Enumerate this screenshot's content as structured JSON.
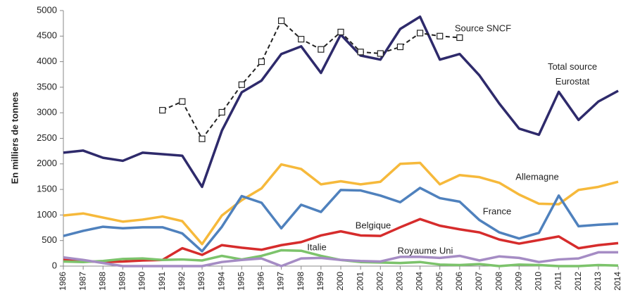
{
  "chart_data": {
    "type": "line",
    "y_label": "En milliers de tonnes",
    "categories": [
      "1986",
      "1987",
      "1988",
      "1989",
      "1990",
      "1991",
      "1992",
      "1993",
      "1994",
      "1995",
      "1996",
      "1997",
      "1998",
      "1999",
      "2000",
      "2001",
      "2002",
      "2003",
      "2004",
      "2005",
      "2006",
      "2007",
      "2008",
      "2009",
      "2010",
      "2011",
      "2012",
      "2013",
      "2014"
    ],
    "ylim": [
      0,
      5000
    ],
    "yticks": [
      0,
      500,
      1000,
      1500,
      2000,
      2500,
      3000,
      3500,
      4000,
      4500,
      5000
    ],
    "series": [
      {
        "name": "Total source Eurostat",
        "color": "#2e2a6b",
        "values": [
          2220,
          2260,
          2120,
          2060,
          2220,
          2190,
          2160,
          1550,
          2650,
          3400,
          3630,
          4150,
          4300,
          3780,
          4530,
          4120,
          4040,
          4640,
          4880,
          4040,
          4150,
          3730,
          3180,
          2690,
          2570,
          3410,
          2860,
          3220,
          3430
        ]
      },
      {
        "name": "Source SNCF",
        "color": "#222222",
        "dashed": true,
        "markers": "square",
        "values": [
          null,
          null,
          null,
          null,
          null,
          3050,
          3220,
          2490,
          3010,
          3550,
          4000,
          4800,
          4440,
          4240,
          4580,
          4190,
          4160,
          4290,
          4560,
          4500,
          4470,
          null,
          null,
          null,
          null,
          null,
          null,
          null,
          null
        ]
      },
      {
        "name": "Allemagne",
        "color": "#f6b93b",
        "values": [
          990,
          1030,
          950,
          870,
          910,
          970,
          880,
          430,
          990,
          1290,
          1520,
          1990,
          1900,
          1600,
          1660,
          1600,
          1650,
          2000,
          2020,
          1600,
          1780,
          1740,
          1630,
          1400,
          1220,
          1210,
          1490,
          1550,
          1650
        ]
      },
      {
        "name": "France",
        "color": "#4f81bd",
        "values": [
          590,
          690,
          770,
          740,
          760,
          760,
          640,
          290,
          770,
          1370,
          1240,
          740,
          1200,
          1060,
          1490,
          1480,
          1380,
          1250,
          1530,
          1330,
          1260,
          900,
          660,
          540,
          650,
          1380,
          780,
          810,
          830
        ]
      },
      {
        "name": "Belgique",
        "color": "#d62c2c",
        "values": [
          120,
          100,
          80,
          90,
          110,
          120,
          350,
          220,
          410,
          360,
          320,
          410,
          470,
          600,
          680,
          600,
          590,
          760,
          920,
          790,
          720,
          660,
          520,
          440,
          510,
          580,
          350,
          410,
          450
        ]
      },
      {
        "name": "Italie",
        "color": "#7cc36b",
        "values": [
          90,
          80,
          100,
          140,
          150,
          120,
          130,
          110,
          200,
          130,
          200,
          310,
          300,
          200,
          120,
          80,
          70,
          60,
          80,
          30,
          20,
          40,
          0,
          30,
          20,
          0,
          0,
          20,
          10
        ]
      },
      {
        "name": "Royaume Uni",
        "color": "#a58cc4",
        "values": [
          170,
          120,
          60,
          0,
          0,
          0,
          0,
          0,
          80,
          120,
          150,
          0,
          150,
          160,
          120,
          100,
          90,
          180,
          180,
          160,
          200,
          110,
          190,
          160,
          80,
          130,
          150,
          270,
          270
        ]
      }
    ]
  }
}
